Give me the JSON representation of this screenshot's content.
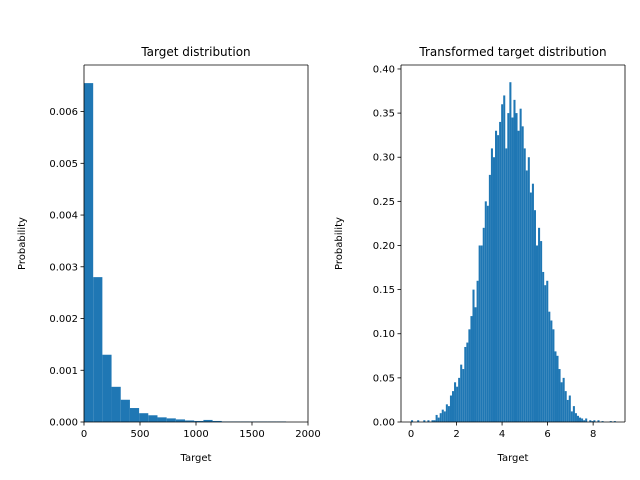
{
  "chart_data": [
    {
      "type": "histogram",
      "title": "Target distribution",
      "x_label": "Target",
      "y_label": "Probability",
      "color": "#1f77b4",
      "bins": [
        0,
        82,
        164,
        246,
        328,
        410,
        492,
        574,
        656,
        738,
        820,
        902,
        984,
        1066,
        1148,
        1230,
        1312,
        1394,
        1476,
        1558,
        1640,
        1722,
        1804
      ],
      "values": [
        0.00655,
        0.0028,
        0.0013,
        0.00068,
        0.00043,
        0.00027,
        0.00017,
        0.00013,
        9e-05,
        7e-05,
        5e-05,
        3e-05,
        2e-05,
        4e-05,
        2e-05,
        1e-05,
        1e-05,
        1e-05,
        1e-05,
        1e-05,
        1e-05,
        1e-05
      ],
      "xlim": [
        0,
        2000
      ],
      "xticks": [
        0,
        500,
        1000,
        1500,
        2000
      ],
      "ylim": [
        0,
        0.0069
      ],
      "yticks": [
        {
          "value": 0,
          "label": "0.000"
        },
        {
          "value": 0.001,
          "label": "0.001"
        },
        {
          "value": 0.002,
          "label": "0.002"
        },
        {
          "value": 0.003,
          "label": "0.003"
        },
        {
          "value": 0.004,
          "label": "0.004"
        },
        {
          "value": 0.005,
          "label": "0.005"
        },
        {
          "value": 0.006,
          "label": "0.006"
        }
      ]
    },
    {
      "type": "histogram",
      "title": "Transformed target distribution",
      "x_label": "Target",
      "y_label": "Probability",
      "color": "#1f77b4",
      "bins": [
        0,
        0.09,
        0.18,
        0.27,
        0.36,
        0.45,
        0.54,
        0.63,
        0.72,
        0.81,
        0.9,
        0.99,
        1.08,
        1.17,
        1.26,
        1.35,
        1.44,
        1.53,
        1.62,
        1.71,
        1.8,
        1.89,
        1.98,
        2.07,
        2.16,
        2.25,
        2.34,
        2.43,
        2.52,
        2.61,
        2.7,
        2.79,
        2.88,
        2.97,
        3.06,
        3.15,
        3.24,
        3.33,
        3.42,
        3.51,
        3.6,
        3.69,
        3.78,
        3.87,
        3.96,
        4.05,
        4.14,
        4.23,
        4.32,
        4.41,
        4.5,
        4.59,
        4.68,
        4.77,
        4.86,
        4.95,
        5.04,
        5.13,
        5.22,
        5.31,
        5.4,
        5.49,
        5.58,
        5.67,
        5.76,
        5.85,
        5.94,
        6.03,
        6.12,
        6.21,
        6.3,
        6.39,
        6.48,
        6.57,
        6.66,
        6.75,
        6.84,
        6.93,
        7.02,
        7.11,
        7.2,
        7.29,
        7.38,
        7.47,
        7.56,
        7.65,
        7.74,
        7.83,
        7.92,
        8.01,
        8.1,
        8.19,
        8.28,
        8.37,
        8.46,
        8.55,
        8.64,
        8.73,
        8.82,
        8.91,
        9.0
      ],
      "values": [
        0.002,
        0,
        0,
        0.002,
        0,
        0,
        0.002,
        0,
        0.002,
        0,
        0.002,
        0.002,
        0.008,
        0.005,
        0.01,
        0.014,
        0.012,
        0.02,
        0.018,
        0.03,
        0.035,
        0.045,
        0.04,
        0.05,
        0.065,
        0.06,
        0.085,
        0.09,
        0.105,
        0.12,
        0.15,
        0.13,
        0.16,
        0.2,
        0.2,
        0.22,
        0.25,
        0.245,
        0.28,
        0.31,
        0.3,
        0.33,
        0.325,
        0.34,
        0.36,
        0.37,
        0.31,
        0.35,
        0.385,
        0.345,
        0.365,
        0.35,
        0.33,
        0.355,
        0.335,
        0.31,
        0.285,
        0.3,
        0.26,
        0.27,
        0.24,
        0.2,
        0.22,
        0.205,
        0.17,
        0.155,
        0.16,
        0.125,
        0.115,
        0.105,
        0.08,
        0.075,
        0.06,
        0.045,
        0.05,
        0.035,
        0.025,
        0.03,
        0.012,
        0.018,
        0.01,
        0.007,
        0.005,
        0.004,
        0.002,
        0.004,
        0,
        0.002,
        0.001,
        0.002,
        0,
        0.002,
        0,
        0.001,
        0,
        0,
        0,
        0.001,
        0,
        0.001
      ],
      "xlim": [
        -0.44,
        9.4
      ],
      "xticks": [
        0,
        2,
        4,
        6,
        8
      ],
      "ylim": [
        0,
        0.4045
      ],
      "yticks": [
        {
          "value": 0,
          "label": "0.00"
        },
        {
          "value": 0.05,
          "label": "0.05"
        },
        {
          "value": 0.1,
          "label": "0.10"
        },
        {
          "value": 0.15,
          "label": "0.15"
        },
        {
          "value": 0.2,
          "label": "0.20"
        },
        {
          "value": 0.25,
          "label": "0.25"
        },
        {
          "value": 0.3,
          "label": "0.30"
        },
        {
          "value": 0.35,
          "label": "0.35"
        },
        {
          "value": 0.4,
          "label": "0.40"
        }
      ]
    }
  ]
}
